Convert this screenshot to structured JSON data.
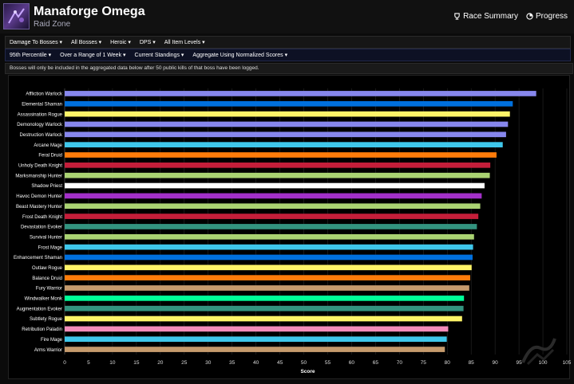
{
  "header": {
    "title": "Manaforge Omega",
    "subtitle": "Raid Zone",
    "links": [
      "Race Summary",
      "Progress"
    ]
  },
  "filters_row1": [
    "Damage To Bosses ▾",
    "All Bosses ▾",
    "Heroic ▾",
    "DPS ▾",
    "All Item Levels ▾"
  ],
  "filters_row2": [
    "95th Percentile ▾",
    "Over a Range of 1 Week ▾",
    "Current Standings ▾",
    "Aggregate Using Normalized Scores ▾"
  ],
  "notice": "Bosses will only be included in the aggregated data below after 50 public kills of that boss have been logged.",
  "colors": {
    "accent": "#4fa3ff",
    "filter_row2_bg": "#0d1124"
  },
  "chart_data": {
    "type": "bar",
    "orientation": "horizontal",
    "xlabel": "Score",
    "ylabel": "",
    "xlim": [
      0,
      105
    ],
    "xticks": [
      0,
      5,
      10,
      15,
      20,
      25,
      30,
      35,
      40,
      45,
      50,
      55,
      60,
      65,
      70,
      75,
      80,
      85,
      90,
      95,
      100,
      105
    ],
    "grid": true,
    "categories": [
      "Affliction Warlock",
      "Elemental Shaman",
      "Assassination Rogue",
      "Demonology Warlock",
      "Destruction Warlock",
      "Arcane Mage",
      "Feral Druid",
      "Unholy Death Knight",
      "Marksmanship Hunter",
      "Shadow Priest",
      "Havoc Demon Hunter",
      "Beast Mastery Hunter",
      "Frost Death Knight",
      "Devastation Evoker",
      "Survival Hunter",
      "Frost Mage",
      "Enhancement Shaman",
      "Outlaw Rogue",
      "Balance Druid",
      "Fury Warrior",
      "Windwalker Monk",
      "Augmentation Evoker",
      "Subtlety Rogue",
      "Retribution Paladin",
      "Fire Mage",
      "Arms Warrior"
    ],
    "values": [
      98.6,
      93.7,
      93.1,
      92.7,
      92.3,
      91.6,
      90.3,
      89.0,
      88.9,
      87.8,
      87.2,
      86.9,
      86.5,
      86.2,
      85.6,
      85.4,
      85.3,
      85.1,
      84.8,
      84.6,
      83.5,
      83.4,
      83.1,
      80.2,
      79.9,
      79.5
    ],
    "colors": [
      "#8787ed",
      "#0070dd",
      "#fff468",
      "#8787ed",
      "#8787ed",
      "#3fc7eb",
      "#ff7c0a",
      "#c41e3a",
      "#aad372",
      "#ffffff",
      "#a330c9",
      "#aad372",
      "#c41e3a",
      "#33937f",
      "#aad372",
      "#3fc7eb",
      "#0070dd",
      "#fff468",
      "#ff7c0a",
      "#c69b6d",
      "#00ff98",
      "#33937f",
      "#fff468",
      "#f48cba",
      "#3fc7eb",
      "#c69b6d"
    ]
  }
}
